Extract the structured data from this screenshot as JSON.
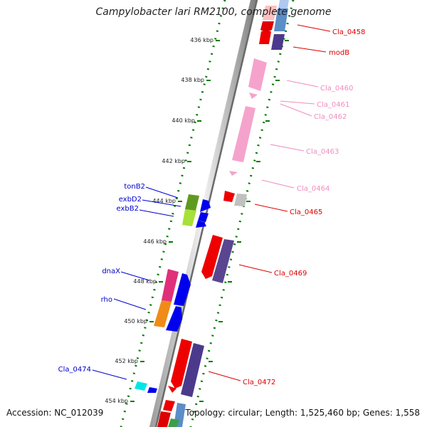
{
  "title": "Campylobacter lari RM2100, complete genome",
  "footer": {
    "accession": "Accession: NC_012039",
    "summary": "Topology: circular; Length: 1,525,460 bp; Genes: 1,558"
  },
  "colors": {
    "backbone": "#888888",
    "tick": "#007a00",
    "left_label": "#0000cc",
    "right_red": "#dd0000",
    "right_pink": "#f08cbf"
  },
  "scale_labels": [
    "436 kbp",
    "438 kbp",
    "440 kbp",
    "442 kbp",
    "444 kbp",
    "446 kbp",
    "448 kbp",
    "450 kbp",
    "452 kbp",
    "454 kbp"
  ],
  "left_genes": [
    "tonB2",
    "exbD2",
    "exbB2",
    "dnaX",
    "rho",
    "Cla_0474"
  ],
  "right_genes": [
    "Cla_0458",
    "modB",
    "Cla_0460",
    "Cla_0461",
    "Cla_0462",
    "Cla_0463",
    "Cla_0464",
    "Cla_0465",
    "Cla_0469",
    "Cla_0472"
  ]
}
